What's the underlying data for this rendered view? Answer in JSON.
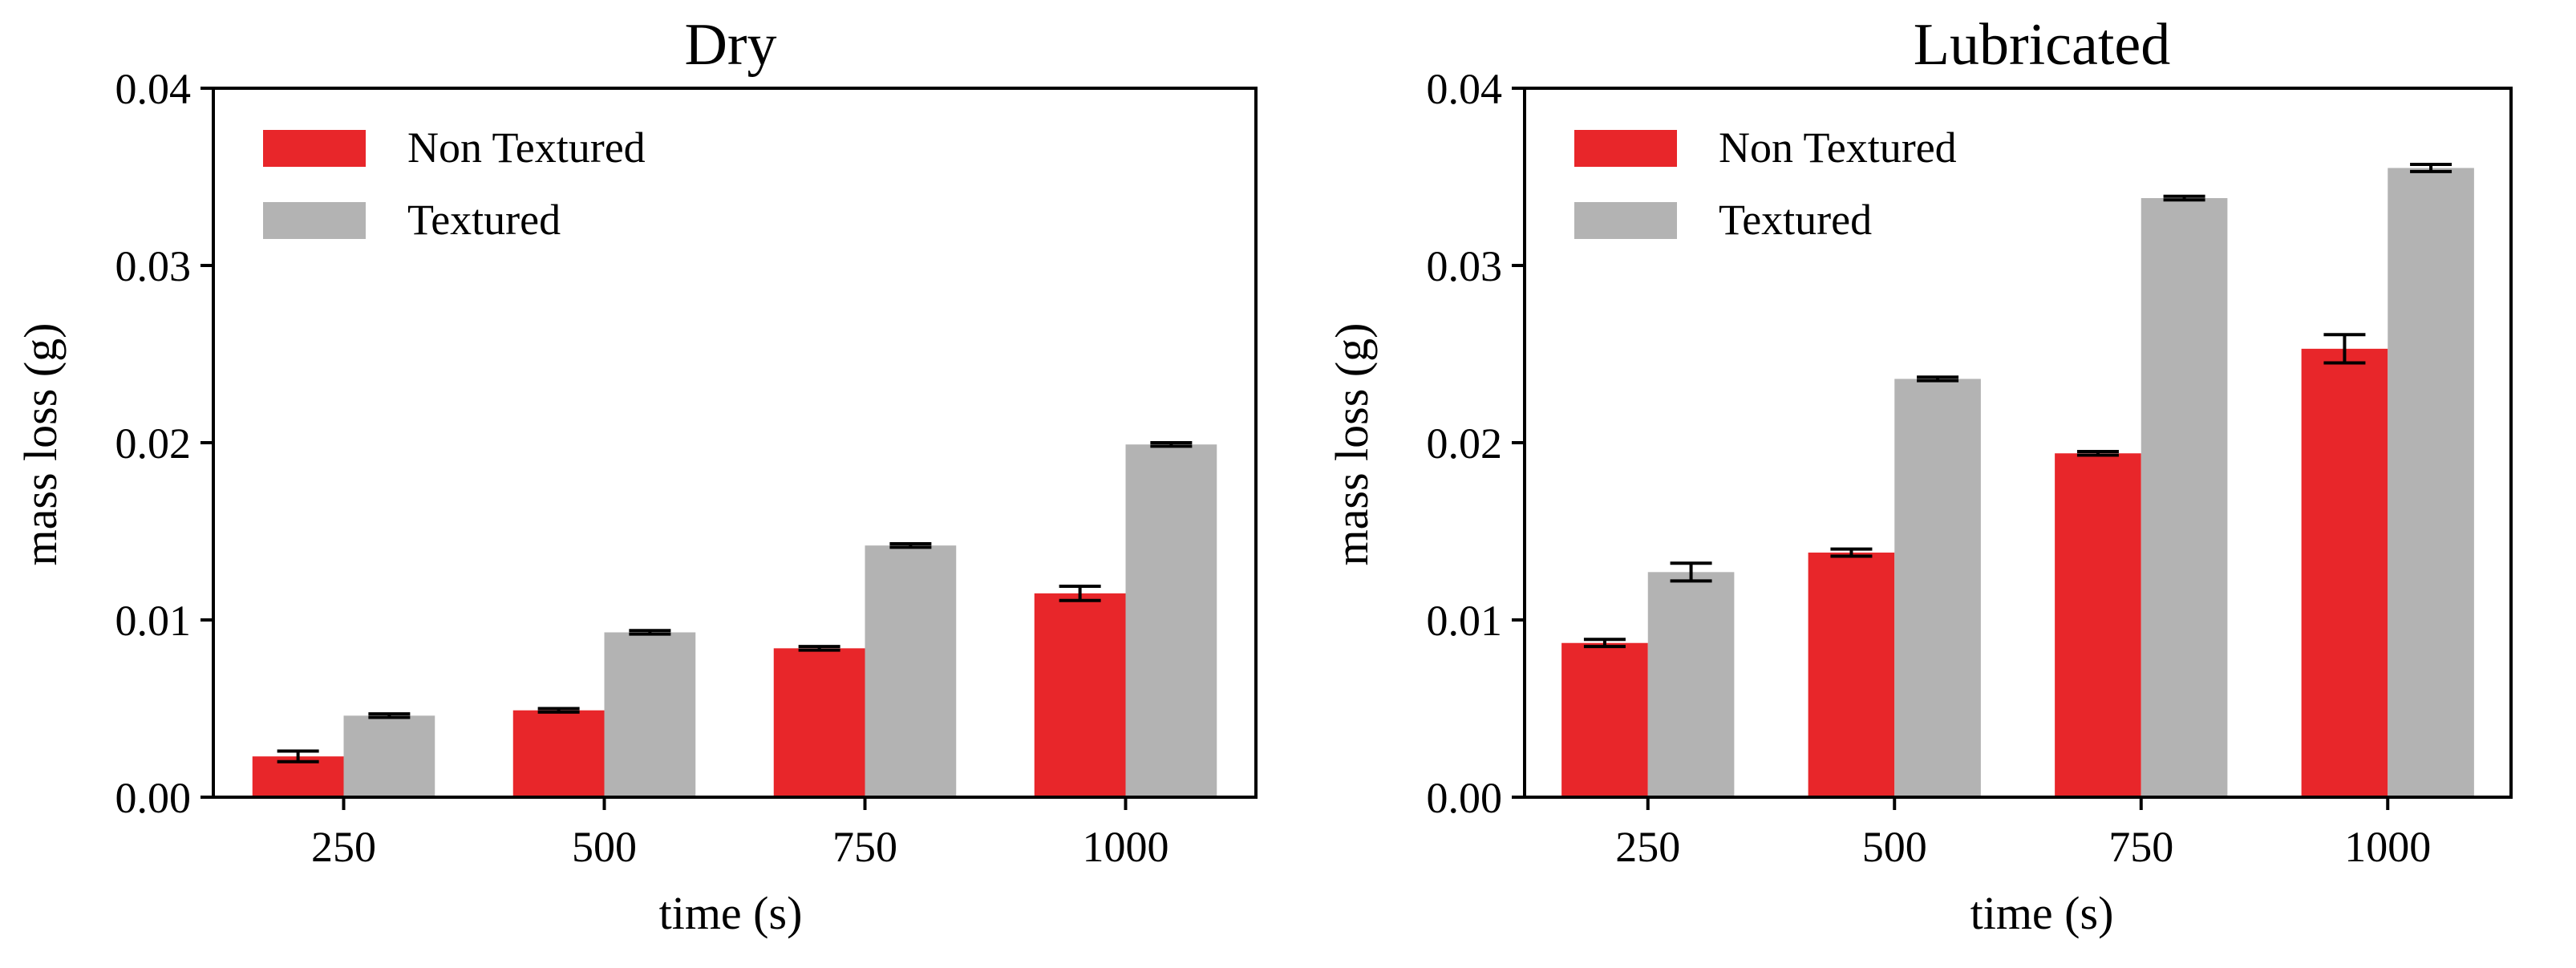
{
  "colors": {
    "non_textured": "#e8262a",
    "textured": "#b3b3b3",
    "axis": "#000000",
    "errorbar": "#000000"
  },
  "chart_data": [
    {
      "type": "bar",
      "title": "Dry",
      "xlabel": "time (s)",
      "ylabel": "mass loss (g)",
      "categories": [
        "250",
        "500",
        "750",
        "1000"
      ],
      "ylim": [
        0,
        0.04
      ],
      "yticks": [
        "0.00",
        "0.01",
        "0.02",
        "0.03",
        "0.04"
      ],
      "legend_position": "top-left",
      "grid": false,
      "series": [
        {
          "name": "Non Textured",
          "color_key": "non_textured",
          "values": [
            0.0023,
            0.0049,
            0.0084,
            0.0115
          ],
          "errors": [
            0.0003,
            0.0001,
            0.0001,
            0.0004
          ]
        },
        {
          "name": "Textured",
          "color_key": "textured",
          "values": [
            0.0046,
            0.0093,
            0.0142,
            0.0199
          ],
          "errors": [
            0.0001,
            0.0001,
            0.0001,
            0.0001
          ]
        }
      ]
    },
    {
      "type": "bar",
      "title": "Lubricated",
      "xlabel": "time (s)",
      "ylabel": "mass loss (g)",
      "categories": [
        "250",
        "500",
        "750",
        "1000"
      ],
      "ylim": [
        0,
        0.04
      ],
      "yticks": [
        "0.00",
        "0.01",
        "0.02",
        "0.03",
        "0.04"
      ],
      "legend_position": "top-left",
      "grid": false,
      "series": [
        {
          "name": "Non Textured",
          "color_key": "non_textured",
          "values": [
            0.0087,
            0.0138,
            0.0194,
            0.0253
          ],
          "errors": [
            0.0002,
            0.0002,
            0.0001,
            0.0008
          ]
        },
        {
          "name": "Textured",
          "color_key": "textured",
          "values": [
            0.0127,
            0.0236,
            0.0338,
            0.0355
          ],
          "errors": [
            0.0005,
            0.0001,
            0.0001,
            0.0002
          ]
        }
      ]
    }
  ]
}
